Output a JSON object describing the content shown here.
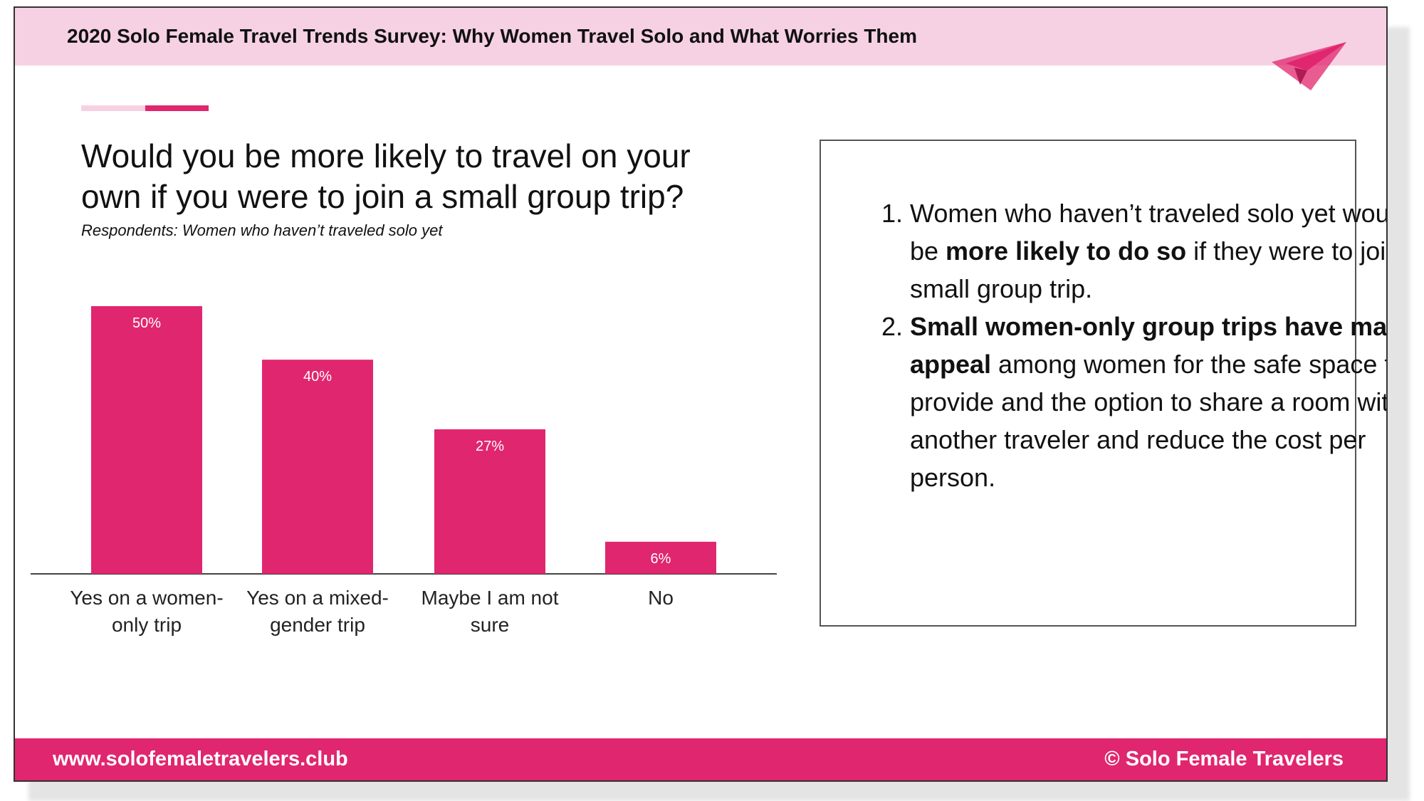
{
  "header": {
    "title": "2020 Solo Female Travel Trends Survey: Why Women Travel Solo and What Worries Them"
  },
  "chart_data": {
    "type": "bar",
    "title": "Would you be more likely to travel on your own if you were to join a small group trip?",
    "subtitle": "Respondents: Women who haven’t traveled solo yet",
    "categories": [
      "Yes on a women-only trip",
      "Yes on a mixed-gender trip",
      "Maybe I am not sure",
      "No"
    ],
    "values": [
      50,
      40,
      27,
      6
    ],
    "value_labels": [
      "50%",
      "40%",
      "27%",
      "6%"
    ],
    "color": "#e0266e"
  },
  "notes": [
    [
      {
        "text": "Women who haven’t traveled solo yet would be "
      },
      {
        "text": "more likely to do so",
        "bold": true
      },
      {
        "text": " if they were to join a small group trip."
      }
    ],
    [
      {
        "text": "Small women-only group trips have major appeal",
        "bold": true
      },
      {
        "text": " among women for the safe space they provide and the option to share a room with another traveler and reduce the cost per person."
      }
    ]
  ],
  "footer": {
    "url": "www.solofemaletravelers.club",
    "copyright": "© Solo Female Travelers"
  }
}
